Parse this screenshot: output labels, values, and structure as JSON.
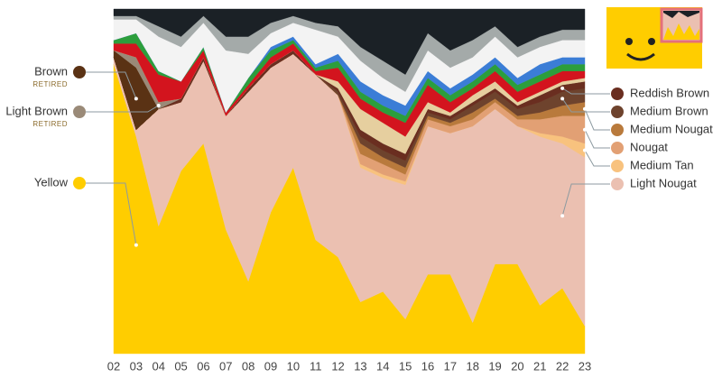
{
  "chart_data": {
    "type": "area",
    "stacked": true,
    "categories": [
      "02",
      "03",
      "04",
      "05",
      "06",
      "07",
      "08",
      "09",
      "10",
      "11",
      "12",
      "13",
      "14",
      "15",
      "16",
      "17",
      "18",
      "19",
      "20",
      "21",
      "22",
      "23"
    ],
    "ylim": [
      0,
      100
    ],
    "series": [
      {
        "name": "Yellow",
        "color": "#ffcd00",
        "values": [
          84,
          63,
          37,
          53,
          61,
          36,
          21,
          41,
          54,
          33,
          28,
          15,
          18,
          10,
          23,
          23,
          9,
          26,
          26,
          14,
          19,
          8
        ]
      },
      {
        "name": "Light Nougat",
        "color": "#ebc0b1",
        "values": [
          2,
          2,
          34,
          20,
          24,
          33,
          55,
          42,
          33,
          48,
          47,
          39,
          33,
          39,
          43,
          41,
          57,
          45,
          40,
          49,
          42,
          49
        ]
      },
      {
        "name": "Medium Tan",
        "color": "#f8c27e",
        "values": [
          0,
          0,
          0,
          0,
          0,
          0,
          0,
          0,
          0,
          0,
          0,
          1,
          1,
          1,
          0,
          0,
          0,
          0,
          0,
          1,
          2,
          4
        ]
      },
      {
        "name": "Nougat",
        "color": "#e2a074",
        "values": [
          0,
          0,
          0,
          0,
          0,
          0,
          0,
          0,
          0,
          0,
          0,
          3,
          3,
          2,
          2,
          2,
          2,
          2,
          2,
          4,
          6,
          8
        ]
      },
      {
        "name": "Medium Nougat",
        "color": "#b97a3c",
        "values": [
          0,
          0,
          0,
          0,
          0,
          0,
          0,
          0,
          0,
          0,
          0,
          3,
          2,
          2,
          1,
          1,
          2,
          1,
          1,
          2,
          3,
          4
        ]
      },
      {
        "name": "Medium Brown",
        "color": "#6e432d",
        "values": [
          0,
          0,
          0,
          0,
          0,
          0,
          0,
          0,
          0,
          0,
          1,
          2,
          2,
          2,
          1,
          1,
          2,
          2,
          2,
          3,
          4,
          4
        ]
      },
      {
        "name": "Reddish Brown",
        "color": "#6a2e20",
        "values": [
          0,
          0,
          0,
          1,
          1,
          0,
          1,
          1,
          1,
          0,
          1,
          2,
          2,
          2,
          1,
          1,
          1,
          1,
          1,
          2,
          2,
          2
        ]
      },
      {
        "name": "Brown",
        "note": "RETIRED",
        "color": "#5a3214",
        "values": [
          2,
          18,
          0,
          0,
          0,
          0,
          0,
          0,
          0,
          0,
          0,
          0,
          0,
          0,
          0,
          0,
          0,
          0,
          0,
          0,
          0,
          0
        ]
      },
      {
        "name": "Light Brown",
        "note": "RETIRED",
        "color": "#9a8a78",
        "values": [
          0,
          3,
          2,
          0,
          0,
          0,
          0,
          0,
          0,
          0,
          0,
          0,
          0,
          0,
          0,
          0,
          0,
          0,
          0,
          0,
          0,
          0
        ]
      },
      {
        "color": "#e6cf9f",
        "values": [
          0,
          0,
          0,
          0,
          0,
          0,
          0,
          0,
          0,
          0,
          2,
          6,
          6,
          5,
          2,
          1,
          2,
          2,
          1,
          1,
          1,
          1
        ]
      },
      {
        "color": "#d3141e",
        "values": [
          2,
          4,
          8,
          5,
          2,
          1,
          1,
          2,
          2,
          1,
          4,
          3,
          3,
          4,
          5,
          3,
          2,
          3,
          3,
          3,
          3,
          2
        ]
      },
      {
        "color": "#2c9e3c",
        "values": [
          1,
          3,
          1,
          0,
          1,
          0,
          2,
          2,
          1,
          1,
          2,
          2,
          2,
          2,
          2,
          2,
          2,
          2,
          2,
          2,
          2,
          2
        ]
      },
      {
        "color": "#3b7dd6",
        "values": [
          0,
          0,
          0,
          0,
          0,
          0,
          0,
          1,
          1,
          1,
          2,
          3,
          3,
          3,
          2,
          2,
          2,
          2,
          2,
          3,
          2,
          2
        ]
      },
      {
        "color": "#f3f3f3",
        "values": [
          6,
          4,
          10,
          10,
          7,
          18,
          7,
          4,
          4,
          10,
          5,
          6,
          5,
          4,
          6,
          6,
          5,
          6,
          6,
          5,
          5,
          5
        ]
      },
      {
        "color": "#a4aaa9",
        "values": [
          1,
          1,
          3,
          3,
          2,
          4,
          5,
          3,
          2,
          2,
          3,
          4,
          5,
          5,
          5,
          5,
          5,
          3,
          3,
          3,
          3,
          3
        ]
      },
      {
        "color": "#1b2126",
        "values": [
          2,
          2,
          5,
          8,
          2,
          8,
          8,
          4,
          2,
          4,
          5,
          11,
          15,
          19,
          7,
          12,
          9,
          5,
          11,
          8,
          6,
          6
        ]
      }
    ]
  }
}
